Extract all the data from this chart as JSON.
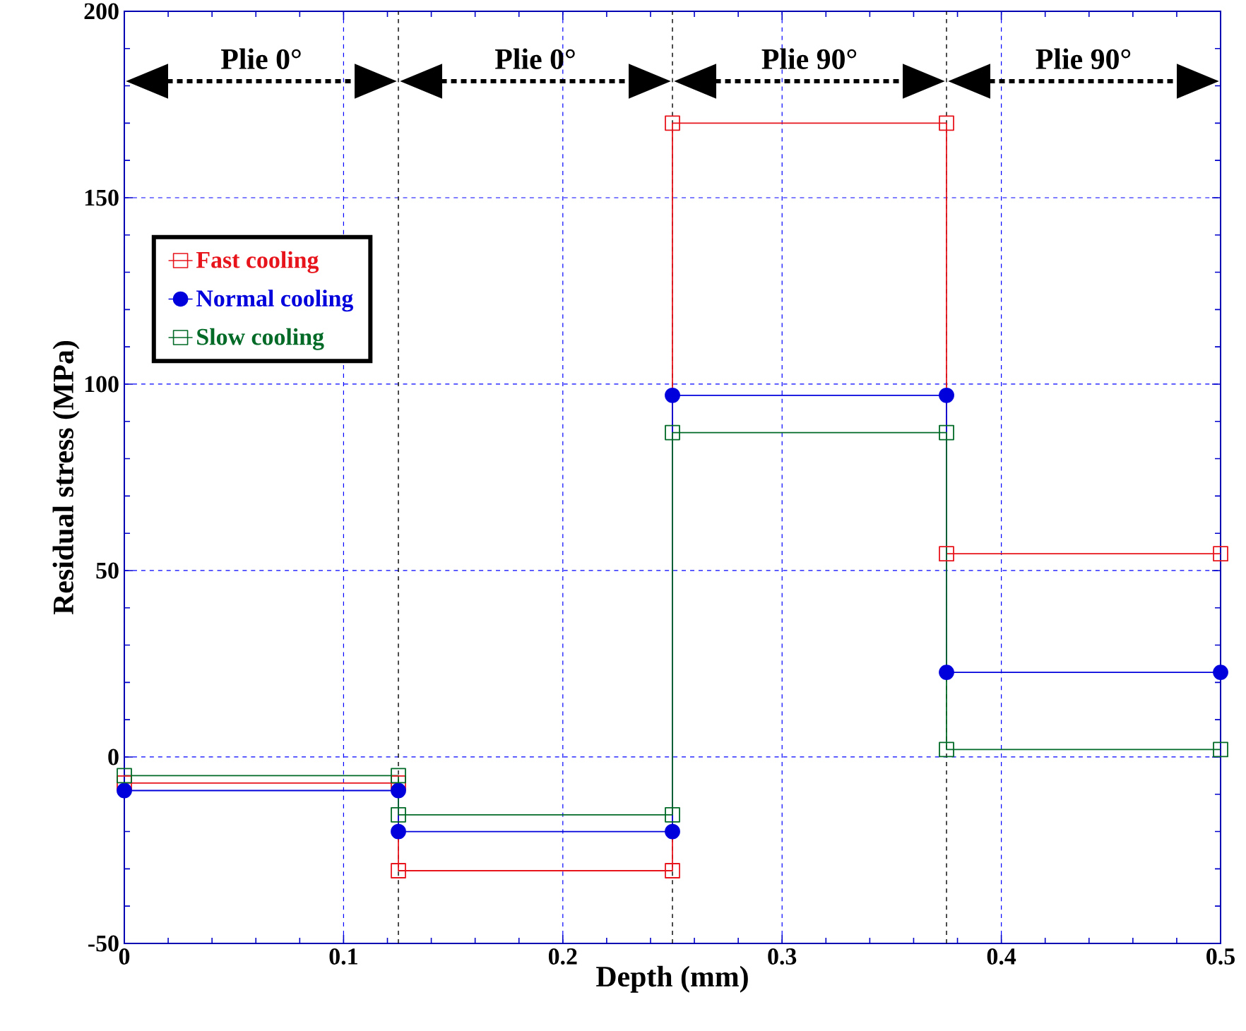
{
  "chart_data": {
    "type": "line",
    "xlabel": "Depth (mm)",
    "ylabel": "Residual stress (MPa)",
    "x": [
      0,
      0.125,
      0.125,
      0.25,
      0.25,
      0.375,
      0.375,
      0.5
    ],
    "series": [
      {
        "name": "Fast cooling",
        "color": "#e8141c",
        "marker": "square",
        "values": [
          -7,
          -7,
          -30.5,
          -30.5,
          170,
          170,
          54.5,
          54.5
        ]
      },
      {
        "name": "Normal cooling",
        "color": "#0000dd",
        "marker": "circle",
        "values": [
          -9,
          -9,
          -20,
          -20,
          97,
          97,
          22.7,
          22.7
        ]
      },
      {
        "name": "Slow cooling",
        "color": "#006a26",
        "marker": "square",
        "values": [
          -5,
          -5,
          -15.5,
          -15.5,
          87,
          87,
          2,
          2
        ]
      }
    ],
    "xlim": [
      0,
      0.5
    ],
    "ylim": [
      -50,
      200
    ],
    "xticks": [
      0,
      0.1,
      0.2,
      0.3,
      0.4,
      0.5
    ],
    "yticks": [
      -50,
      0,
      50,
      100,
      150,
      200
    ],
    "grid": true,
    "legend": "top left",
    "line_style": "solid",
    "ref_lines": [
      {
        "axis": "x",
        "value": 0.125,
        "color": "#000000",
        "line_style": "dashed"
      },
      {
        "axis": "x",
        "value": 0.25,
        "color": "#000000",
        "line_style": "dashed"
      },
      {
        "axis": "x",
        "value": 0.375,
        "color": "#000000",
        "line_style": "dashed"
      }
    ],
    "annotations": [
      "Plie 0°",
      "Plie 0°",
      "Plie 90°",
      "Plie 90°"
    ]
  }
}
